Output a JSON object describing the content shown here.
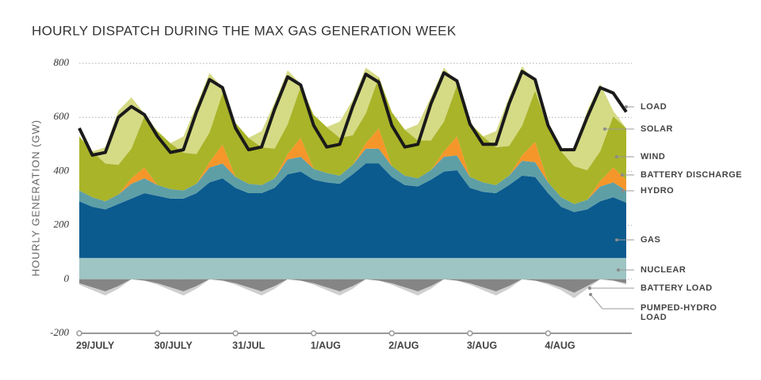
{
  "chart_data": {
    "type": "stacked_area",
    "title": "HOURLY DISPATCH DURING THE MAX GAS GENERATION WEEK",
    "y_label": "HOURLY GENERATION (GW)",
    "xlim": [
      0,
      170
    ],
    "xticks": [
      {
        "value": 0,
        "label": "29/JULY"
      },
      {
        "value": 24,
        "label": "30/JULY"
      },
      {
        "value": 48,
        "label": "31/JUL"
      },
      {
        "value": 72,
        "label": "1/AUG"
      },
      {
        "value": 96,
        "label": "2/AUG"
      },
      {
        "value": 120,
        "label": "3/AUG"
      },
      {
        "value": 144,
        "label": "4/AUG"
      }
    ],
    "ylim": [
      -200,
      800
    ],
    "yticks": [
      -200,
      0,
      200,
      400,
      600,
      800
    ],
    "grid": true,
    "x": [
      0,
      4,
      8,
      12,
      16,
      20,
      24,
      28,
      32,
      36,
      40,
      44,
      48,
      52,
      56,
      60,
      64,
      68,
      72,
      76,
      80,
      84,
      88,
      92,
      96,
      100,
      104,
      108,
      112,
      116,
      120,
      124,
      128,
      132,
      136,
      140,
      144,
      148,
      152,
      156,
      160,
      164,
      168
    ],
    "series": [
      {
        "name": "LOAD",
        "type": "line",
        "color": "#1a1a1a",
        "values": [
          560,
          460,
          470,
          600,
          640,
          610,
          530,
          470,
          480,
          620,
          740,
          710,
          560,
          480,
          490,
          630,
          750,
          720,
          570,
          490,
          500,
          640,
          760,
          730,
          570,
          490,
          500,
          650,
          765,
          735,
          575,
          500,
          500,
          650,
          770,
          740,
          570,
          480,
          480,
          600,
          710,
          690,
          620
        ]
      },
      {
        "name": "SOLAR",
        "color": "#d5da84",
        "values": [
          0,
          0,
          60,
          200,
          190,
          10,
          0,
          0,
          60,
          180,
          220,
          20,
          0,
          0,
          60,
          170,
          200,
          10,
          0,
          0,
          60,
          130,
          170,
          0,
          0,
          0,
          60,
          160,
          200,
          10,
          0,
          0,
          60,
          180,
          220,
          30,
          0,
          0,
          60,
          220,
          250,
          20,
          0
        ]
      },
      {
        "name": "WIND",
        "color": "#a9b429",
        "values": [
          200,
          170,
          140,
          110,
          110,
          190,
          200,
          170,
          140,
          110,
          110,
          190,
          200,
          170,
          140,
          110,
          110,
          190,
          200,
          170,
          140,
          110,
          110,
          190,
          200,
          170,
          140,
          110,
          110,
          190,
          200,
          170,
          140,
          110,
          110,
          190,
          200,
          170,
          140,
          110,
          110,
          190,
          190
        ]
      },
      {
        "name": "BATTERY DISCHARGE",
        "color": "#f5962a",
        "values": [
          0,
          0,
          0,
          0,
          20,
          40,
          0,
          0,
          0,
          0,
          20,
          70,
          0,
          0,
          0,
          0,
          20,
          70,
          0,
          0,
          0,
          0,
          20,
          75,
          0,
          0,
          0,
          0,
          20,
          70,
          0,
          0,
          0,
          0,
          20,
          75,
          0,
          0,
          0,
          0,
          20,
          55,
          40
        ]
      },
      {
        "name": "HYDRO",
        "color": "#5e9fa6",
        "values": [
          40,
          35,
          30,
          35,
          55,
          55,
          40,
          35,
          30,
          35,
          55,
          55,
          40,
          35,
          30,
          35,
          55,
          55,
          40,
          35,
          30,
          35,
          55,
          55,
          40,
          35,
          30,
          35,
          55,
          55,
          40,
          35,
          30,
          35,
          55,
          55,
          40,
          35,
          30,
          35,
          55,
          55,
          45
        ]
      },
      {
        "name": "GAS",
        "color": "#0b5b8f",
        "values": [
          210,
          190,
          180,
          200,
          220,
          240,
          230,
          220,
          220,
          240,
          280,
          295,
          260,
          240,
          240,
          260,
          310,
          320,
          290,
          280,
          275,
          310,
          350,
          350,
          300,
          270,
          265,
          290,
          320,
          325,
          260,
          245,
          240,
          270,
          305,
          300,
          240,
          190,
          170,
          180,
          210,
          225,
          205
        ]
      },
      {
        "name": "NUCLEAR",
        "color": "#9ec5c3",
        "values": [
          79,
          79,
          79,
          79,
          79,
          79,
          79,
          79,
          79,
          79,
          79,
          79,
          79,
          79,
          79,
          79,
          79,
          79,
          79,
          79,
          79,
          79,
          79,
          79,
          79,
          79,
          79,
          79,
          79,
          79,
          79,
          79,
          79,
          79,
          79,
          79,
          79,
          79,
          79,
          79,
          79,
          79,
          79
        ]
      },
      {
        "name": "BATTERY LOAD",
        "color": "#858585",
        "values": [
          -15,
          -30,
          -45,
          -25,
          0,
          -5,
          -15,
          -30,
          -45,
          -25,
          0,
          -5,
          -15,
          -30,
          -45,
          -25,
          0,
          -5,
          -15,
          -30,
          -45,
          -25,
          0,
          -5,
          -15,
          -30,
          -45,
          -25,
          0,
          -5,
          -15,
          -30,
          -45,
          -25,
          0,
          -5,
          -15,
          -30,
          -50,
          -25,
          0,
          -5,
          -15
        ]
      },
      {
        "name": "PUMPED-HYDRO LOAD",
        "color": "#cfcfcf",
        "values": [
          -5,
          -10,
          -15,
          -10,
          0,
          0,
          -5,
          -10,
          -15,
          -10,
          0,
          0,
          -5,
          -10,
          -15,
          -10,
          0,
          0,
          -5,
          -10,
          -15,
          -10,
          0,
          0,
          -5,
          -10,
          -15,
          -10,
          0,
          0,
          -5,
          -10,
          -15,
          -10,
          0,
          0,
          -5,
          -10,
          -20,
          -10,
          0,
          0,
          -5
        ]
      }
    ]
  }
}
